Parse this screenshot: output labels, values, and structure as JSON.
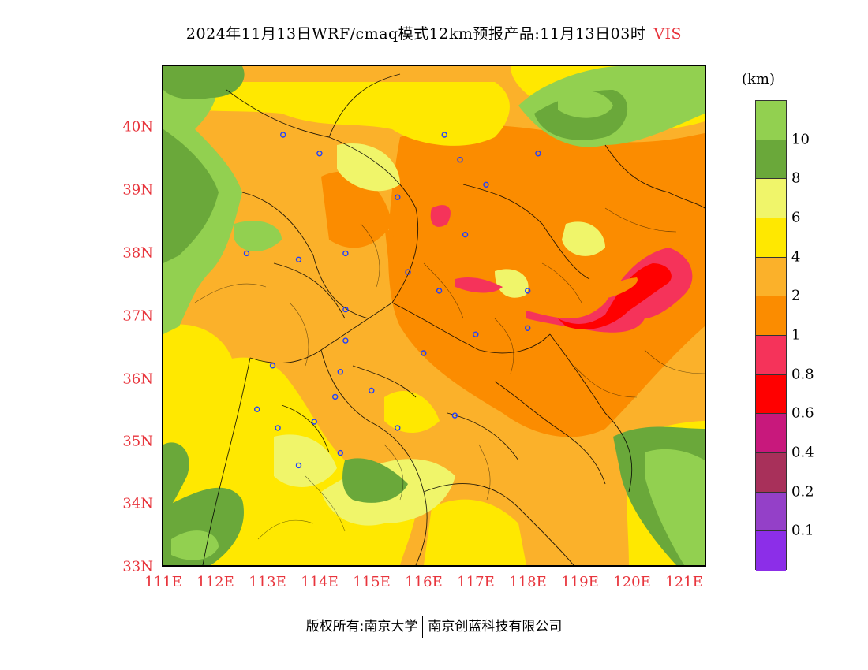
{
  "title": "2024年11月13日WRF/cmaq模式12km预报产品:11月13日03时",
  "variable": "VIS",
  "unit": "(km)",
  "lat_labels": [
    "40N",
    "39N",
    "38N",
    "37N",
    "36N",
    "35N",
    "34N",
    "33N"
  ],
  "lon_labels": [
    "111E",
    "112E",
    "113E",
    "114E",
    "115E",
    "116E",
    "117E",
    "118E",
    "119E",
    "120E",
    "121E"
  ],
  "legend": {
    "colors": [
      "#92d050",
      "#6aa83a",
      "#f0f56a",
      "#ffe800",
      "#fbb12a",
      "#fb8c00",
      "#f5335a",
      "#ff0000",
      "#c8187c",
      "#a8305a",
      "#9440c8",
      "#8c2ee8"
    ],
    "labels": [
      "10",
      "8",
      "6",
      "4",
      "2",
      "1",
      "0.8",
      "0.6",
      "0.4",
      "0.2",
      "0.1"
    ]
  },
  "copyright": {
    "left": "版权所有:南京大学",
    "right": "南京创蓝科技有限公司"
  },
  "stations": [
    {
      "lon": 113.3,
      "lat": 39.9
    },
    {
      "lon": 114.0,
      "lat": 39.6
    },
    {
      "lon": 116.4,
      "lat": 39.9
    },
    {
      "lon": 117.2,
      "lat": 39.1
    },
    {
      "lon": 118.2,
      "lat": 39.6
    },
    {
      "lon": 116.7,
      "lat": 39.5
    },
    {
      "lon": 115.5,
      "lat": 38.9
    },
    {
      "lon": 116.8,
      "lat": 38.3
    },
    {
      "lon": 114.5,
      "lat": 38.0
    },
    {
      "lon": 113.6,
      "lat": 37.9
    },
    {
      "lon": 112.6,
      "lat": 38.0
    },
    {
      "lon": 115.7,
      "lat": 37.7
    },
    {
      "lon": 116.3,
      "lat": 37.4
    },
    {
      "lon": 118.0,
      "lat": 37.4
    },
    {
      "lon": 114.5,
      "lat": 37.1
    },
    {
      "lon": 114.5,
      "lat": 36.6
    },
    {
      "lon": 116.0,
      "lat": 36.4
    },
    {
      "lon": 117.0,
      "lat": 36.7
    },
    {
      "lon": 118.0,
      "lat": 36.8
    },
    {
      "lon": 113.1,
      "lat": 36.2
    },
    {
      "lon": 114.4,
      "lat": 36.1
    },
    {
      "lon": 114.3,
      "lat": 35.7
    },
    {
      "lon": 115.0,
      "lat": 35.8
    },
    {
      "lon": 112.8,
      "lat": 35.5
    },
    {
      "lon": 113.2,
      "lat": 35.2
    },
    {
      "lon": 113.9,
      "lat": 35.3
    },
    {
      "lon": 115.5,
      "lat": 35.2
    },
    {
      "lon": 116.6,
      "lat": 35.4
    },
    {
      "lon": 114.4,
      "lat": 34.8
    },
    {
      "lon": 113.6,
      "lat": 34.6
    }
  ]
}
